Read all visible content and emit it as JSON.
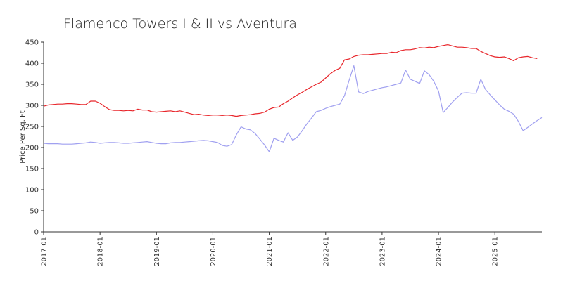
{
  "chart_data": {
    "type": "line",
    "title": "Flamenco Towers I & II vs Aventura",
    "xlabel": "",
    "ylabel": "Price Per Sq. Ft",
    "ylim": [
      0,
      450
    ],
    "yticks": [
      0,
      50,
      100,
      150,
      200,
      250,
      300,
      350,
      400,
      450
    ],
    "xlim": [
      "2017-01",
      "2025-11"
    ],
    "xticks": [
      "2017-01",
      "2018-01",
      "2019-01",
      "2020-01",
      "2021-01",
      "2022-01",
      "2023-01",
      "2024-01",
      "2025-01"
    ],
    "grid": false,
    "legend": "none",
    "series": [
      {
        "color": "#e8262b",
        "points": [
          [
            "2017-01",
            298
          ],
          [
            "2017-02",
            301
          ],
          [
            "2017-03",
            302
          ],
          [
            "2017-04",
            303
          ],
          [
            "2017-05",
            303
          ],
          [
            "2017-06",
            304
          ],
          [
            "2017-07",
            304
          ],
          [
            "2017-08",
            303
          ],
          [
            "2017-09",
            302
          ],
          [
            "2017-10",
            302
          ],
          [
            "2017-11",
            310
          ],
          [
            "2017-12",
            310
          ],
          [
            "2018-01",
            305
          ],
          [
            "2018-02",
            297
          ],
          [
            "2018-03",
            290
          ],
          [
            "2018-04",
            288
          ],
          [
            "2018-05",
            288
          ],
          [
            "2018-06",
            287
          ],
          [
            "2018-07",
            288
          ],
          [
            "2018-08",
            287
          ],
          [
            "2018-09",
            291
          ],
          [
            "2018-10",
            289
          ],
          [
            "2018-11",
            289
          ],
          [
            "2018-12",
            285
          ],
          [
            "2019-01",
            284
          ],
          [
            "2019-02",
            285
          ],
          [
            "2019-03",
            286
          ],
          [
            "2019-04",
            287
          ],
          [
            "2019-05",
            285
          ],
          [
            "2019-06",
            287
          ],
          [
            "2019-07",
            284
          ],
          [
            "2019-08",
            281
          ],
          [
            "2019-09",
            278
          ],
          [
            "2019-10",
            279
          ],
          [
            "2019-11",
            277
          ],
          [
            "2019-12",
            276
          ],
          [
            "2020-01",
            277
          ],
          [
            "2020-02",
            277
          ],
          [
            "2020-03",
            276
          ],
          [
            "2020-04",
            277
          ],
          [
            "2020-05",
            276
          ],
          [
            "2020-06",
            274
          ],
          [
            "2020-07",
            276
          ],
          [
            "2020-08",
            277
          ],
          [
            "2020-09",
            278
          ],
          [
            "2020-10",
            280
          ],
          [
            "2020-11",
            281
          ],
          [
            "2020-12",
            284
          ],
          [
            "2021-01",
            291
          ],
          [
            "2021-02",
            295
          ],
          [
            "2021-03",
            296
          ],
          [
            "2021-04",
            304
          ],
          [
            "2021-05",
            310
          ],
          [
            "2021-06",
            318
          ],
          [
            "2021-07",
            325
          ],
          [
            "2021-08",
            331
          ],
          [
            "2021-09",
            338
          ],
          [
            "2021-10",
            344
          ],
          [
            "2021-11",
            350
          ],
          [
            "2021-12",
            355
          ],
          [
            "2022-01",
            365
          ],
          [
            "2022-02",
            375
          ],
          [
            "2022-03",
            383
          ],
          [
            "2022-04",
            388
          ],
          [
            "2022-05",
            408
          ],
          [
            "2022-06",
            410
          ],
          [
            "2022-07",
            416
          ],
          [
            "2022-08",
            419
          ],
          [
            "2022-09",
            420
          ],
          [
            "2022-10",
            420
          ],
          [
            "2022-11",
            421
          ],
          [
            "2022-12",
            422
          ],
          [
            "2023-01",
            423
          ],
          [
            "2023-02",
            423
          ],
          [
            "2023-03",
            426
          ],
          [
            "2023-04",
            425
          ],
          [
            "2023-05",
            430
          ],
          [
            "2023-06",
            432
          ],
          [
            "2023-07",
            432
          ],
          [
            "2023-08",
            434
          ],
          [
            "2023-09",
            437
          ],
          [
            "2023-10",
            436
          ],
          [
            "2023-11",
            438
          ],
          [
            "2023-12",
            437
          ],
          [
            "2024-01",
            440
          ],
          [
            "2024-02",
            442
          ],
          [
            "2024-03",
            444
          ],
          [
            "2024-04",
            441
          ],
          [
            "2024-05",
            438
          ],
          [
            "2024-06",
            438
          ],
          [
            "2024-07",
            437
          ],
          [
            "2024-08",
            435
          ],
          [
            "2024-09",
            435
          ],
          [
            "2024-10",
            428
          ],
          [
            "2024-11",
            423
          ],
          [
            "2024-12",
            418
          ],
          [
            "2025-01",
            415
          ],
          [
            "2025-02",
            414
          ],
          [
            "2025-03",
            415
          ],
          [
            "2025-04",
            411
          ],
          [
            "2025-05",
            406
          ],
          [
            "2025-06",
            413
          ],
          [
            "2025-07",
            415
          ],
          [
            "2025-08",
            416
          ],
          [
            "2025-09",
            413
          ],
          [
            "2025-10",
            411
          ]
        ]
      },
      {
        "color": "#a0a0f0",
        "points": [
          [
            "2017-01",
            210
          ],
          [
            "2017-02",
            209
          ],
          [
            "2017-03",
            209
          ],
          [
            "2017-04",
            209
          ],
          [
            "2017-05",
            208
          ],
          [
            "2017-06",
            208
          ],
          [
            "2017-07",
            208
          ],
          [
            "2017-08",
            209
          ],
          [
            "2017-09",
            210
          ],
          [
            "2017-10",
            211
          ],
          [
            "2017-11",
            213
          ],
          [
            "2017-12",
            212
          ],
          [
            "2018-01",
            210
          ],
          [
            "2018-02",
            211
          ],
          [
            "2018-03",
            212
          ],
          [
            "2018-04",
            212
          ],
          [
            "2018-05",
            211
          ],
          [
            "2018-06",
            210
          ],
          [
            "2018-07",
            210
          ],
          [
            "2018-08",
            211
          ],
          [
            "2018-09",
            212
          ],
          [
            "2018-10",
            213
          ],
          [
            "2018-11",
            214
          ],
          [
            "2018-12",
            212
          ],
          [
            "2019-01",
            210
          ],
          [
            "2019-02",
            209
          ],
          [
            "2019-03",
            209
          ],
          [
            "2019-04",
            211
          ],
          [
            "2019-05",
            212
          ],
          [
            "2019-06",
            212
          ],
          [
            "2019-07",
            213
          ],
          [
            "2019-08",
            214
          ],
          [
            "2019-09",
            215
          ],
          [
            "2019-10",
            216
          ],
          [
            "2019-11",
            217
          ],
          [
            "2019-12",
            216
          ],
          [
            "2020-01",
            214
          ],
          [
            "2020-02",
            212
          ],
          [
            "2020-03",
            205
          ],
          [
            "2020-04",
            203
          ],
          [
            "2020-05",
            207
          ],
          [
            "2020-06",
            230
          ],
          [
            "2020-07",
            249
          ],
          [
            "2020-08",
            244
          ],
          [
            "2020-09",
            242
          ],
          [
            "2020-10",
            233
          ],
          [
            "2020-11",
            220
          ],
          [
            "2020-12",
            206
          ],
          [
            "2021-01",
            190
          ],
          [
            "2021-02",
            222
          ],
          [
            "2021-03",
            217
          ],
          [
            "2021-04",
            213
          ],
          [
            "2021-05",
            235
          ],
          [
            "2021-06",
            217
          ],
          [
            "2021-07",
            225
          ],
          [
            "2021-08",
            240
          ],
          [
            "2021-09",
            256
          ],
          [
            "2021-10",
            270
          ],
          [
            "2021-11",
            285
          ],
          [
            "2021-12",
            288
          ],
          [
            "2022-01",
            293
          ],
          [
            "2022-02",
            297
          ],
          [
            "2022-03",
            300
          ],
          [
            "2022-04",
            303
          ],
          [
            "2022-05",
            323
          ],
          [
            "2022-06",
            360
          ],
          [
            "2022-07",
            394
          ],
          [
            "2022-08",
            332
          ],
          [
            "2022-09",
            328
          ],
          [
            "2022-10",
            333
          ],
          [
            "2022-11",
            336
          ],
          [
            "2022-12",
            339
          ],
          [
            "2023-01",
            342
          ],
          [
            "2023-02",
            344
          ],
          [
            "2023-03",
            347
          ],
          [
            "2023-04",
            350
          ],
          [
            "2023-05",
            353
          ],
          [
            "2023-06",
            384
          ],
          [
            "2023-07",
            362
          ],
          [
            "2023-08",
            357
          ],
          [
            "2023-09",
            352
          ],
          [
            "2023-10",
            382
          ],
          [
            "2023-11",
            373
          ],
          [
            "2023-12",
            357
          ],
          [
            "2024-01",
            334
          ],
          [
            "2024-02",
            283
          ],
          [
            "2024-03",
            295
          ],
          [
            "2024-04",
            308
          ],
          [
            "2024-05",
            319
          ],
          [
            "2024-06",
            329
          ],
          [
            "2024-07",
            330
          ],
          [
            "2024-08",
            329
          ],
          [
            "2024-09",
            329
          ],
          [
            "2024-10",
            362
          ],
          [
            "2024-11",
            338
          ],
          [
            "2024-12",
            325
          ],
          [
            "2025-01",
            313
          ],
          [
            "2025-02",
            301
          ],
          [
            "2025-03",
            291
          ],
          [
            "2025-04",
            286
          ],
          [
            "2025-05",
            279
          ],
          [
            "2025-06",
            262
          ],
          [
            "2025-07",
            240
          ],
          [
            "2025-08",
            248
          ],
          [
            "2025-09",
            256
          ],
          [
            "2025-10",
            264
          ],
          [
            "2025-11",
            271
          ]
        ]
      }
    ]
  }
}
